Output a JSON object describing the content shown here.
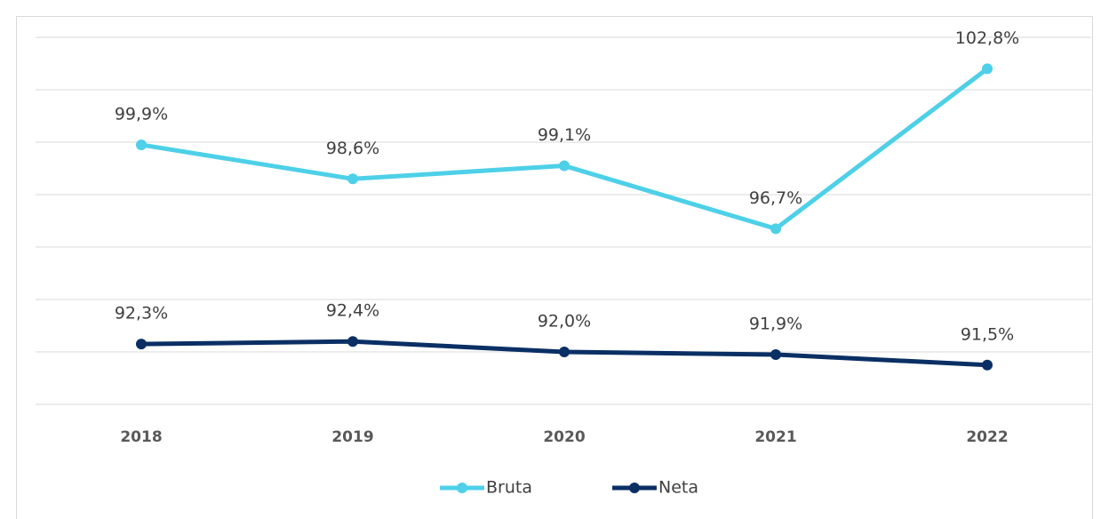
{
  "chart_data": {
    "type": "line",
    "categories": [
      "2018",
      "2019",
      "2020",
      "2021",
      "2022"
    ],
    "series": [
      {
        "name": "Bruta",
        "color": "#4dd0e8",
        "values": [
          99.9,
          98.6,
          99.1,
          96.7,
          102.8
        ],
        "value_labels": [
          "99,9%",
          "98,6%",
          "99,1%",
          "96,7%",
          "102,8%"
        ]
      },
      {
        "name": "Neta",
        "color": "#0a2f64",
        "values": [
          92.3,
          92.4,
          92.0,
          91.9,
          91.5
        ],
        "value_labels": [
          "92,3%",
          "92,4%",
          "92,0%",
          "91,9%",
          "91,5%"
        ]
      }
    ],
    "ylim": [
      90,
      104
    ],
    "yticks": [
      90,
      92,
      94,
      96,
      98,
      100,
      102,
      104
    ],
    "grid": true,
    "legend": "bottom"
  }
}
